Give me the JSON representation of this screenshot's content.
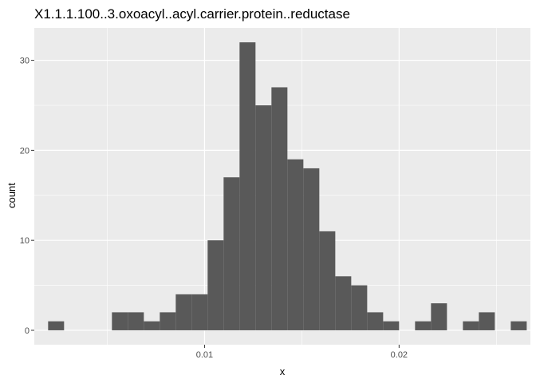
{
  "chart_data": {
    "type": "bar",
    "title": "X1.1.1.100..3.oxoacyl..acyl.carrier.protein..reductase",
    "xlabel": "x",
    "ylabel": "count",
    "xlim": [
      0.00125,
      0.02675
    ],
    "ylim": [
      -1.6,
      33.6
    ],
    "bin_width": 0.00082,
    "bin_centers": [
      0.00237,
      0.00319,
      0.00401,
      0.00483,
      0.00565,
      0.00647,
      0.00729,
      0.00811,
      0.00893,
      0.00975,
      0.01057,
      0.01139,
      0.01221,
      0.01303,
      0.01385,
      0.01467,
      0.01549,
      0.01631,
      0.01713,
      0.01795,
      0.01877,
      0.01959,
      0.02041,
      0.02123,
      0.02205,
      0.02287,
      0.02369,
      0.02451,
      0.02533,
      0.02615
    ],
    "values": [
      1,
      0,
      0,
      0,
      2,
      2,
      1,
      2,
      4,
      4,
      10,
      17,
      32,
      25,
      27,
      19,
      18,
      11,
      6,
      5,
      2,
      1,
      0,
      1,
      3,
      0,
      1,
      2,
      0,
      1
    ],
    "x_ticks": [
      0.01,
      0.02
    ],
    "x_tick_labels": [
      "0.01",
      "0.02"
    ],
    "y_ticks": [
      0,
      10,
      20,
      30
    ],
    "y_tick_labels": [
      "0",
      "10",
      "20",
      "30"
    ],
    "grid": true,
    "colors": {
      "bar": "#595959",
      "panel": "#ebebeb",
      "grid_major": "#ffffff",
      "tick": "#333333"
    }
  }
}
